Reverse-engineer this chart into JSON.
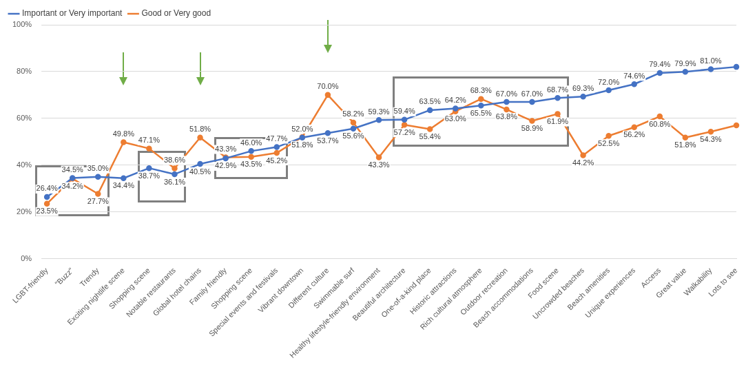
{
  "chart_data": {
    "type": "line",
    "categories": [
      "LGBT-friendly",
      "\"Buzz\"",
      "Trendy",
      "Exciting nightlife scene",
      "Shopping scene",
      "Notable restaurants",
      "Global hotel chains",
      "Family friendly",
      "Shopping scene",
      "Special events and festivals",
      "Vibrant downtown",
      "Different culture",
      "Swimmable surf",
      "Healthy lifestyle-friendly environment",
      "Beautiful architecture",
      "One-of-a-kind place",
      "Historic attractions",
      "Rich cultural atmosphere",
      "Outdoor recreation",
      "Beach accommodations",
      "Food scene",
      "Uncrowded beaches",
      "Beach amenities",
      "Unique experiences",
      "Access",
      "Great value",
      "Walkability",
      "Lots to see"
    ],
    "series": [
      {
        "name": "Important or Very important",
        "color": "#4472c4",
        "values": [
          26.4,
          34.5,
          35.0,
          34.4,
          38.7,
          36.1,
          40.5,
          42.9,
          46.0,
          47.7,
          51.8,
          53.7,
          55.6,
          59.3,
          59.4,
          63.5,
          64.2,
          65.5,
          67.0,
          67.0,
          68.7,
          69.3,
          72.0,
          74.6,
          79.4,
          79.9,
          81.0,
          82
        ],
        "value_labels": [
          "26.4%",
          "34.5%",
          "35.0%",
          "34.4%",
          "38.7%",
          "36.1%",
          "40.5%",
          "42.9%",
          "46.0%",
          "47.7%",
          "51.8%",
          "53.7%",
          "55.6%",
          "59.3%",
          "59.4%",
          "63.5%",
          "64.2%",
          "65.5%",
          "67.0%",
          "67.0%",
          "68.7%",
          "69.3%",
          "72.0%",
          "74.6%",
          "79.4%",
          "79.9%",
          "81.0%",
          null
        ]
      },
      {
        "name": "Good or Very good",
        "color": "#ed7d31",
        "values": [
          23.5,
          34.2,
          27.7,
          49.8,
          47.1,
          38.6,
          51.8,
          43.3,
          43.5,
          45.2,
          52.0,
          70.0,
          58.2,
          43.3,
          57.2,
          55.4,
          63.0,
          68.3,
          63.8,
          58.9,
          61.9,
          44.2,
          52.5,
          56.2,
          60.8,
          51.8,
          54.3,
          57
        ],
        "value_labels": [
          "23.5%",
          "34.2%",
          "27.7%",
          "49.8%",
          "47.1%",
          "38.6%",
          "51.8%",
          "43.3%",
          "43.5%",
          "45.2%",
          "52.0%",
          "70.0%",
          "58.2%",
          "43.3%",
          "57.2%",
          "55.4%",
          "63.0%",
          "68.3%",
          "63.8%",
          "58.9%",
          "61.9%",
          "44.2%",
          "52.5%",
          "56.2%",
          "60.8%",
          "51.8%",
          "54.3%",
          null
        ]
      }
    ],
    "ylim": [
      0,
      100
    ],
    "yticks": [
      {
        "value": 0,
        "label": "0%"
      },
      {
        "value": 20,
        "label": "20%"
      },
      {
        "value": 40,
        "label": "40%"
      },
      {
        "value": 60,
        "label": "60%"
      },
      {
        "value": 80,
        "label": "80%"
      },
      {
        "value": 100,
        "label": "100%"
      }
    ],
    "grid": "y",
    "legend": "top left",
    "marker": "circle",
    "line_style": "solid"
  }
}
